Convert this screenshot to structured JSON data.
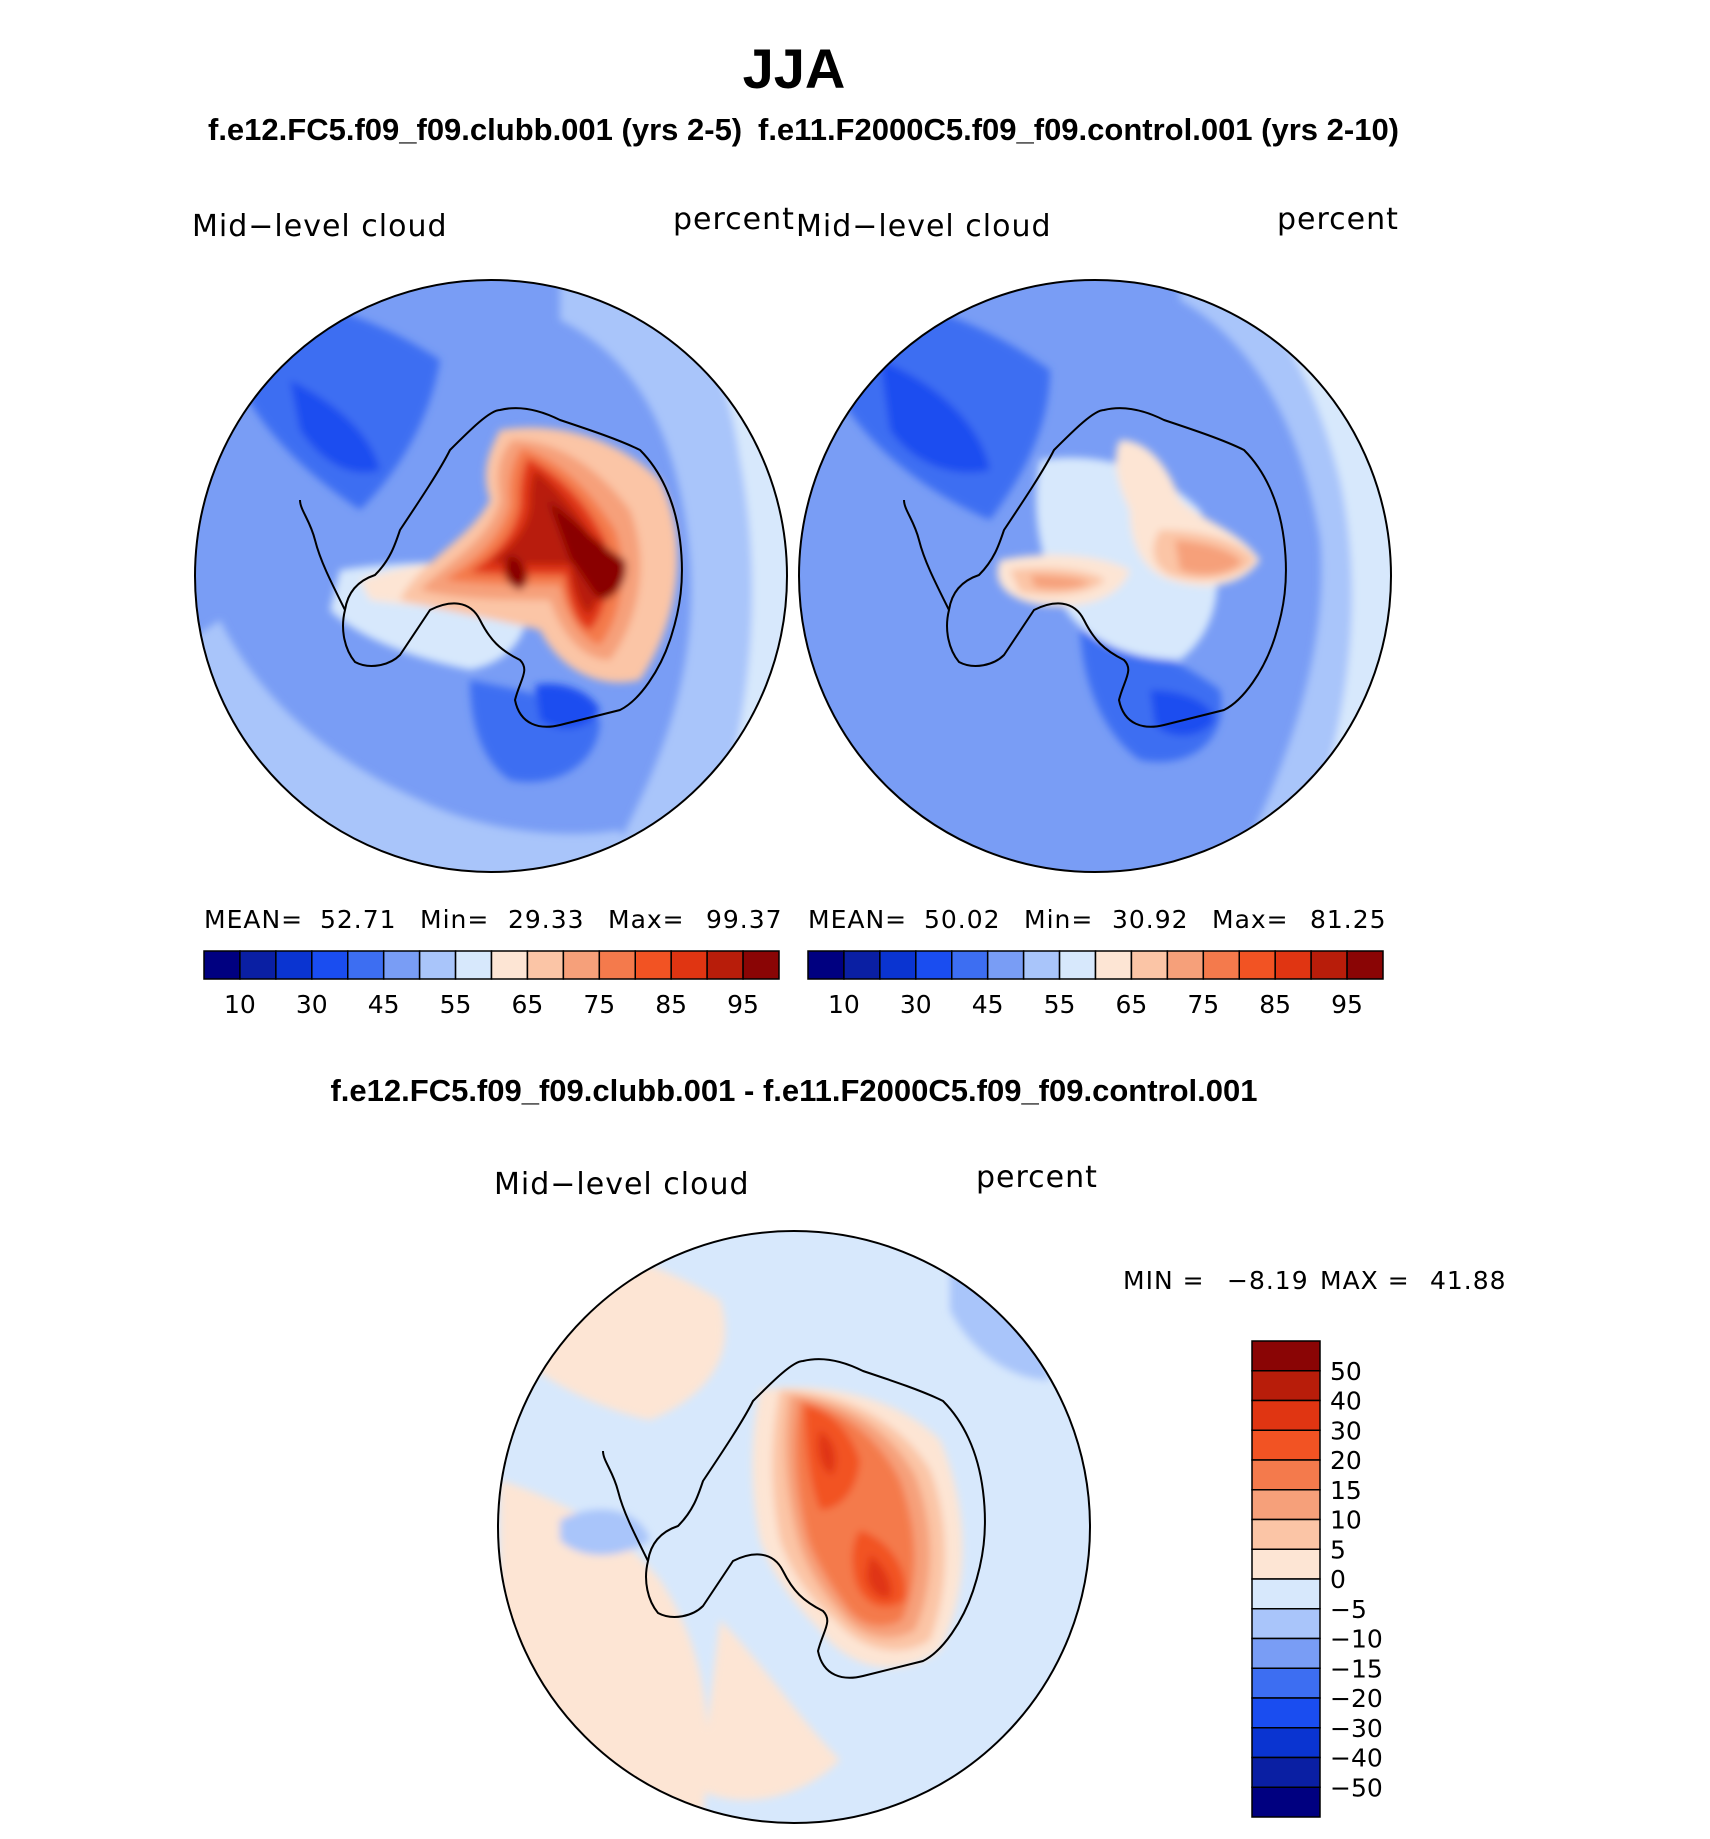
{
  "title": "JJA",
  "panels": [
    {
      "case": "f.e12.FC5.f09_f09.clubb.001 (yrs 2-5)",
      "variable": "Mid−level cloud",
      "units": "percent",
      "mean_label": "MEAN=",
      "mean": "52.71",
      "min_label": "Min=",
      "min": "29.33",
      "max_label": "Max=",
      "max": "99.37"
    },
    {
      "case": "f.e11.F2000C5.f09_f09.control.001 (yrs 2-10)",
      "variable": "Mid−level cloud",
      "units": "percent",
      "mean_label": "MEAN=",
      "mean": "50.02",
      "min_label": "Min=",
      "min": "30.92",
      "max_label": "Max=",
      "max": "81.25"
    }
  ],
  "field_colorbar": {
    "colors": [
      "#000080",
      "#0a1fa3",
      "#0a34d1",
      "#1a4df0",
      "#3d6ef2",
      "#799df5",
      "#a9c5fa",
      "#d7e8fc",
      "#fde5d4",
      "#fbc5a6",
      "#f6a07a",
      "#f47a4c",
      "#f25323",
      "#e03512",
      "#b81d0a",
      "#8a0505"
    ],
    "tick_labels": [
      "10",
      "30",
      "45",
      "55",
      "65",
      "75",
      "85",
      "95"
    ]
  },
  "difference": {
    "title": "f.e12.FC5.f09_f09.clubb.001 - f.e11.F2000C5.f09_f09.control.001",
    "variable": "Mid−level cloud",
    "units": "percent",
    "min_label": "MIN =",
    "min": "−8.19",
    "max_label": "MAX =",
    "max": "41.88",
    "colorbar": {
      "colors_top_to_bottom": [
        "#8a0505",
        "#b81d0a",
        "#e03512",
        "#f25323",
        "#f47a4c",
        "#f6a07a",
        "#fbc5a6",
        "#fde5d4",
        "#d7e8fc",
        "#a9c5fa",
        "#799df5",
        "#3d6ef2",
        "#1a4df0",
        "#0a34d1",
        "#0a1fa3",
        "#000080"
      ],
      "tick_labels": [
        "50",
        "40",
        "30",
        "20",
        "15",
        "10",
        "5",
        "0",
        "−5",
        "−10",
        "−15",
        "−20",
        "−30",
        "−40",
        "−50"
      ]
    }
  }
}
